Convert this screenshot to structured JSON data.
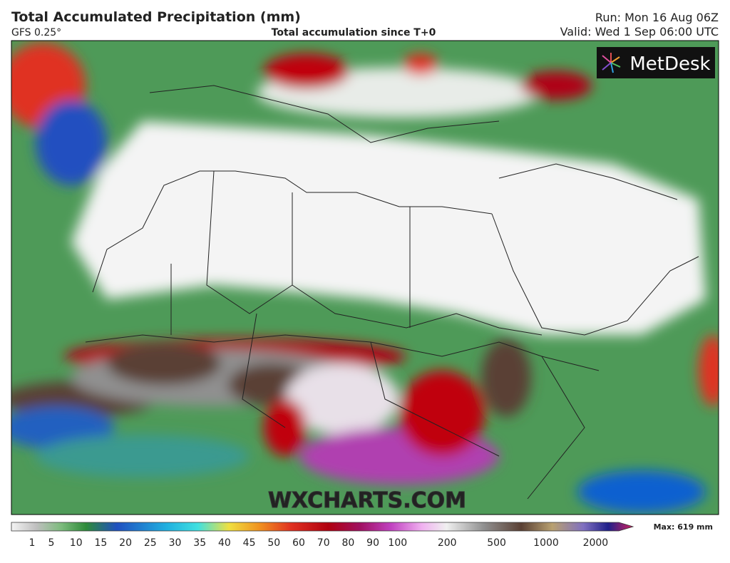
{
  "header": {
    "title": "Total Accumulated Precipitation (mm)",
    "model": "GFS 0.25°",
    "subtitle": "Total accumulation since T+0",
    "run": "Run: Mon 16 Aug 06Z",
    "valid": "Valid: Wed 1 Sep 06:00 UTC"
  },
  "logo": "MetDesk",
  "watermark": "WXCHARTS.COM",
  "legend": {
    "labels": [
      "1",
      "5",
      "10",
      "15",
      "20",
      "25",
      "30",
      "35",
      "40",
      "45",
      "50",
      "60",
      "70",
      "80",
      "90",
      "100",
      "200",
      "500",
      "1000",
      "2000"
    ],
    "max": "Max: 619 mm"
  }
}
